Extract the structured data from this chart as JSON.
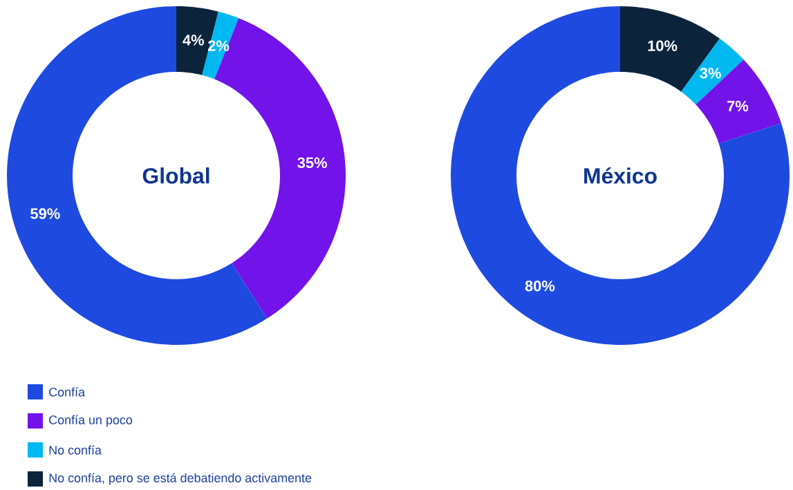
{
  "chart_data": {
    "type": "donut",
    "categories": [
      "No confía, pero se está debatiendo activamente",
      "No confía",
      "Confía un poco",
      "Confía"
    ],
    "colors": [
      "#0c233c",
      "#00b8f0",
      "#7213ea",
      "#1f4ae0"
    ],
    "legend": "bottom",
    "series": [
      {
        "name": "Global",
        "values": [
          4,
          2,
          35,
          59
        ],
        "value_labels": [
          "4%",
          "2%",
          "35%",
          "59%"
        ]
      },
      {
        "name": "México",
        "values": [
          10,
          3,
          7,
          80
        ],
        "value_labels": [
          "10%",
          "3%",
          "7%",
          "80%"
        ]
      }
    ]
  }
}
